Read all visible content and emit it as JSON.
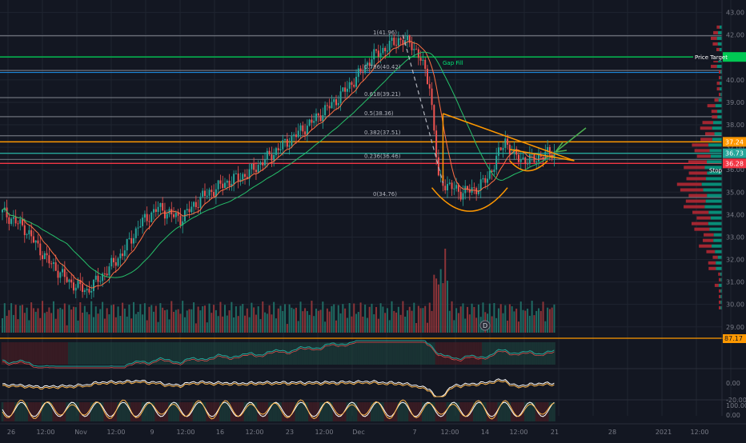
{
  "chart_data": {
    "type": "candlestick",
    "y_axis": {
      "ylim": [
        28.6,
        43.2
      ],
      "ticks": [
        "43.00",
        "42.00",
        "41.00",
        "40.00",
        "39.00",
        "38.00",
        "37.00",
        "36.00",
        "35.00",
        "34.00",
        "33.00",
        "32.00",
        "31.00",
        "30.00",
        "29.00"
      ],
      "scale": "linear"
    },
    "x_axis": {
      "ticks": [
        "26",
        "12:00",
        "Nov",
        "12:00",
        "9",
        "12:00",
        "16",
        "12:00",
        "23",
        "12:00",
        "Dec",
        "7",
        "12:00",
        "14",
        "12:00",
        "21",
        "28",
        "2021",
        "12:00"
      ]
    },
    "price_badges": [
      {
        "label": "Price Target",
        "value": "",
        "color": "#00c853"
      },
      {
        "label": "37.24",
        "color": "#ff9800"
      },
      {
        "label": "36.73",
        "color": "#26a69a"
      },
      {
        "label": "36.28",
        "color": "#f23645"
      }
    ],
    "right_labels": [
      {
        "text": "Price Target"
      },
      {
        "text": "Stop"
      }
    ],
    "fib_levels": [
      {
        "label": "1(41.96)",
        "value": 41.96
      },
      {
        "label": "0.786(40.42)",
        "value": 40.42
      },
      {
        "label": "0.618(39.21)",
        "value": 39.21
      },
      {
        "label": "0.5(38.36)",
        "value": 38.36
      },
      {
        "label": "0.382(37.51)",
        "value": 37.51
      },
      {
        "label": "0.236(36.46)",
        "value": 36.46
      },
      {
        "label": "0(34.76)",
        "value": 34.76
      }
    ],
    "annotations": [
      {
        "text": "Gap Fill"
      },
      {
        "text": "D"
      }
    ],
    "horizontal_lines": [
      {
        "value": 41.02,
        "color": "#00c853"
      },
      {
        "value": 37.24,
        "color": "#ff9800"
      },
      {
        "value": 36.73,
        "color": "#26a69a"
      },
      {
        "value": 36.28,
        "color": "#f23645"
      }
    ],
    "series_key_points": {
      "close_path": [
        [
          0,
          34.1
        ],
        [
          10,
          33.4
        ],
        [
          20,
          32.0
        ],
        [
          30,
          31.0
        ],
        [
          38,
          30.6
        ],
        [
          46,
          31.4
        ],
        [
          54,
          32.3
        ],
        [
          62,
          33.6
        ],
        [
          70,
          34.3
        ],
        [
          80,
          33.8
        ],
        [
          90,
          34.8
        ],
        [
          100,
          35.4
        ],
        [
          110,
          35.8
        ],
        [
          120,
          36.6
        ],
        [
          130,
          37.4
        ],
        [
          140,
          38.2
        ],
        [
          150,
          39.1
        ],
        [
          160,
          40.2
        ],
        [
          166,
          41.0
        ],
        [
          172,
          41.4
        ],
        [
          178,
          41.8
        ],
        [
          184,
          41.6
        ],
        [
          188,
          40.9
        ],
        [
          192,
          39.8
        ],
        [
          196,
          35.6
        ],
        [
          200,
          35.3
        ],
        [
          206,
          35.0
        ],
        [
          212,
          35.1
        ],
        [
          218,
          35.6
        ],
        [
          222,
          36.5
        ],
        [
          226,
          37.3
        ],
        [
          230,
          36.6
        ],
        [
          236,
          36.4
        ],
        [
          242,
          36.6
        ],
        [
          248,
          36.8
        ]
      ],
      "volume_note": "volume bars under price pane"
    },
    "sub_panes": [
      {
        "value_label": "87.17",
        "ticks": []
      },
      {
        "ticks": [
          "0.00",
          "-20.00"
        ]
      },
      {
        "ticks": [
          "100.00",
          "0.00"
        ]
      }
    ]
  }
}
